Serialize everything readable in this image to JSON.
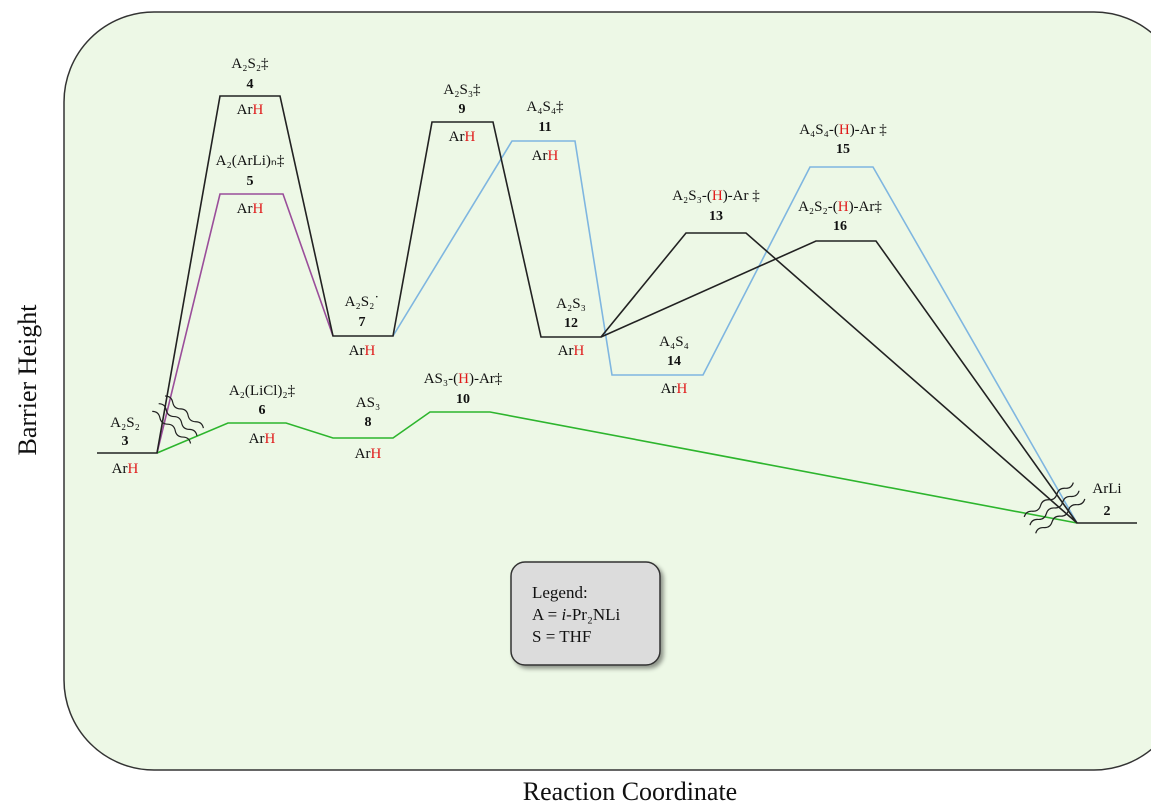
{
  "axes": {
    "y_label": "Barrier Height",
    "x_label": "Reaction Coordinate"
  },
  "nodes": [
    {
      "formula": [
        "A₂S₂"
      ],
      "number": "3",
      "below": [
        "Ar",
        "H"
      ]
    },
    {
      "formula": [
        "A₂S₂‡"
      ],
      "number": "4",
      "below": [
        "Ar",
        "H"
      ]
    },
    {
      "formula": [
        "A₂(ArLi)ₙ‡"
      ],
      "number": "5",
      "below": [
        "Ar",
        "H"
      ]
    },
    {
      "formula": [
        "A₂(LiCl)₂‡"
      ],
      "number": "6",
      "below": [
        "Ar",
        "H"
      ]
    },
    {
      "formula": [
        "A₂S₂˙"
      ],
      "number": "7",
      "below": [
        "Ar",
        "H"
      ]
    },
    {
      "formula": [
        "AS₃"
      ],
      "number": "8",
      "below": [
        "Ar",
        "H"
      ]
    },
    {
      "formula": [
        "A₂S₃‡"
      ],
      "number": "9",
      "below": [
        "Ar",
        "H"
      ]
    },
    {
      "formula": [
        "AS₃-(",
        "H",
        ")-Ar‡"
      ],
      "number": "10"
    },
    {
      "formula": [
        "A₄S₄‡"
      ],
      "number": "11",
      "below": [
        "Ar",
        "H"
      ]
    },
    {
      "formula": [
        "A₂S₃"
      ],
      "number": "12",
      "below": [
        "Ar",
        "H"
      ]
    },
    {
      "formula": [
        "A₂S₃-(",
        "H",
        ")-Ar ‡"
      ],
      "number": "13"
    },
    {
      "formula": [
        "A₄S₄"
      ],
      "number": "14",
      "below": [
        "Ar",
        "H"
      ]
    },
    {
      "formula": [
        "A₄S₄-(",
        "H",
        ")-Ar ‡"
      ],
      "number": "15"
    },
    {
      "formula": [
        "A₂S₂-(",
        "H",
        ")-Ar‡"
      ],
      "number": "16"
    },
    {
      "formula": [
        "ArLi"
      ],
      "number": "2"
    }
  ],
  "legend": {
    "title": "Legend:",
    "lines": [
      [
        "A = ",
        "i",
        "-Pr₂NLi"
      ],
      [
        "S = THF"
      ]
    ]
  }
}
